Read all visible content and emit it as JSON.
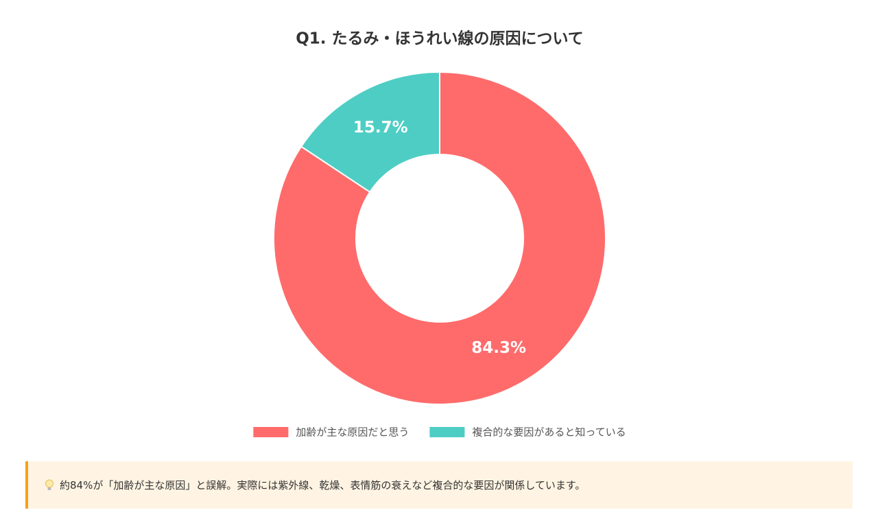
{
  "chart_data": {
    "type": "pie",
    "title": "Q1. たるみ・ほうれい線の原因について",
    "categories": [
      "加齢が主な原因だと思う",
      "複合的な要因があると知っている"
    ],
    "values": [
      84.3,
      15.7
    ],
    "value_labels": [
      "84.3%",
      "15.7%"
    ],
    "colors": [
      "#ff6b6b",
      "#4ecdc4"
    ],
    "legend": "bottom"
  },
  "note": {
    "text": "約84%が「加齢が主な原因」と誤解。実際には紫外線、乾燥、表情筋の衰えなど複合的な要因が関係しています。"
  }
}
